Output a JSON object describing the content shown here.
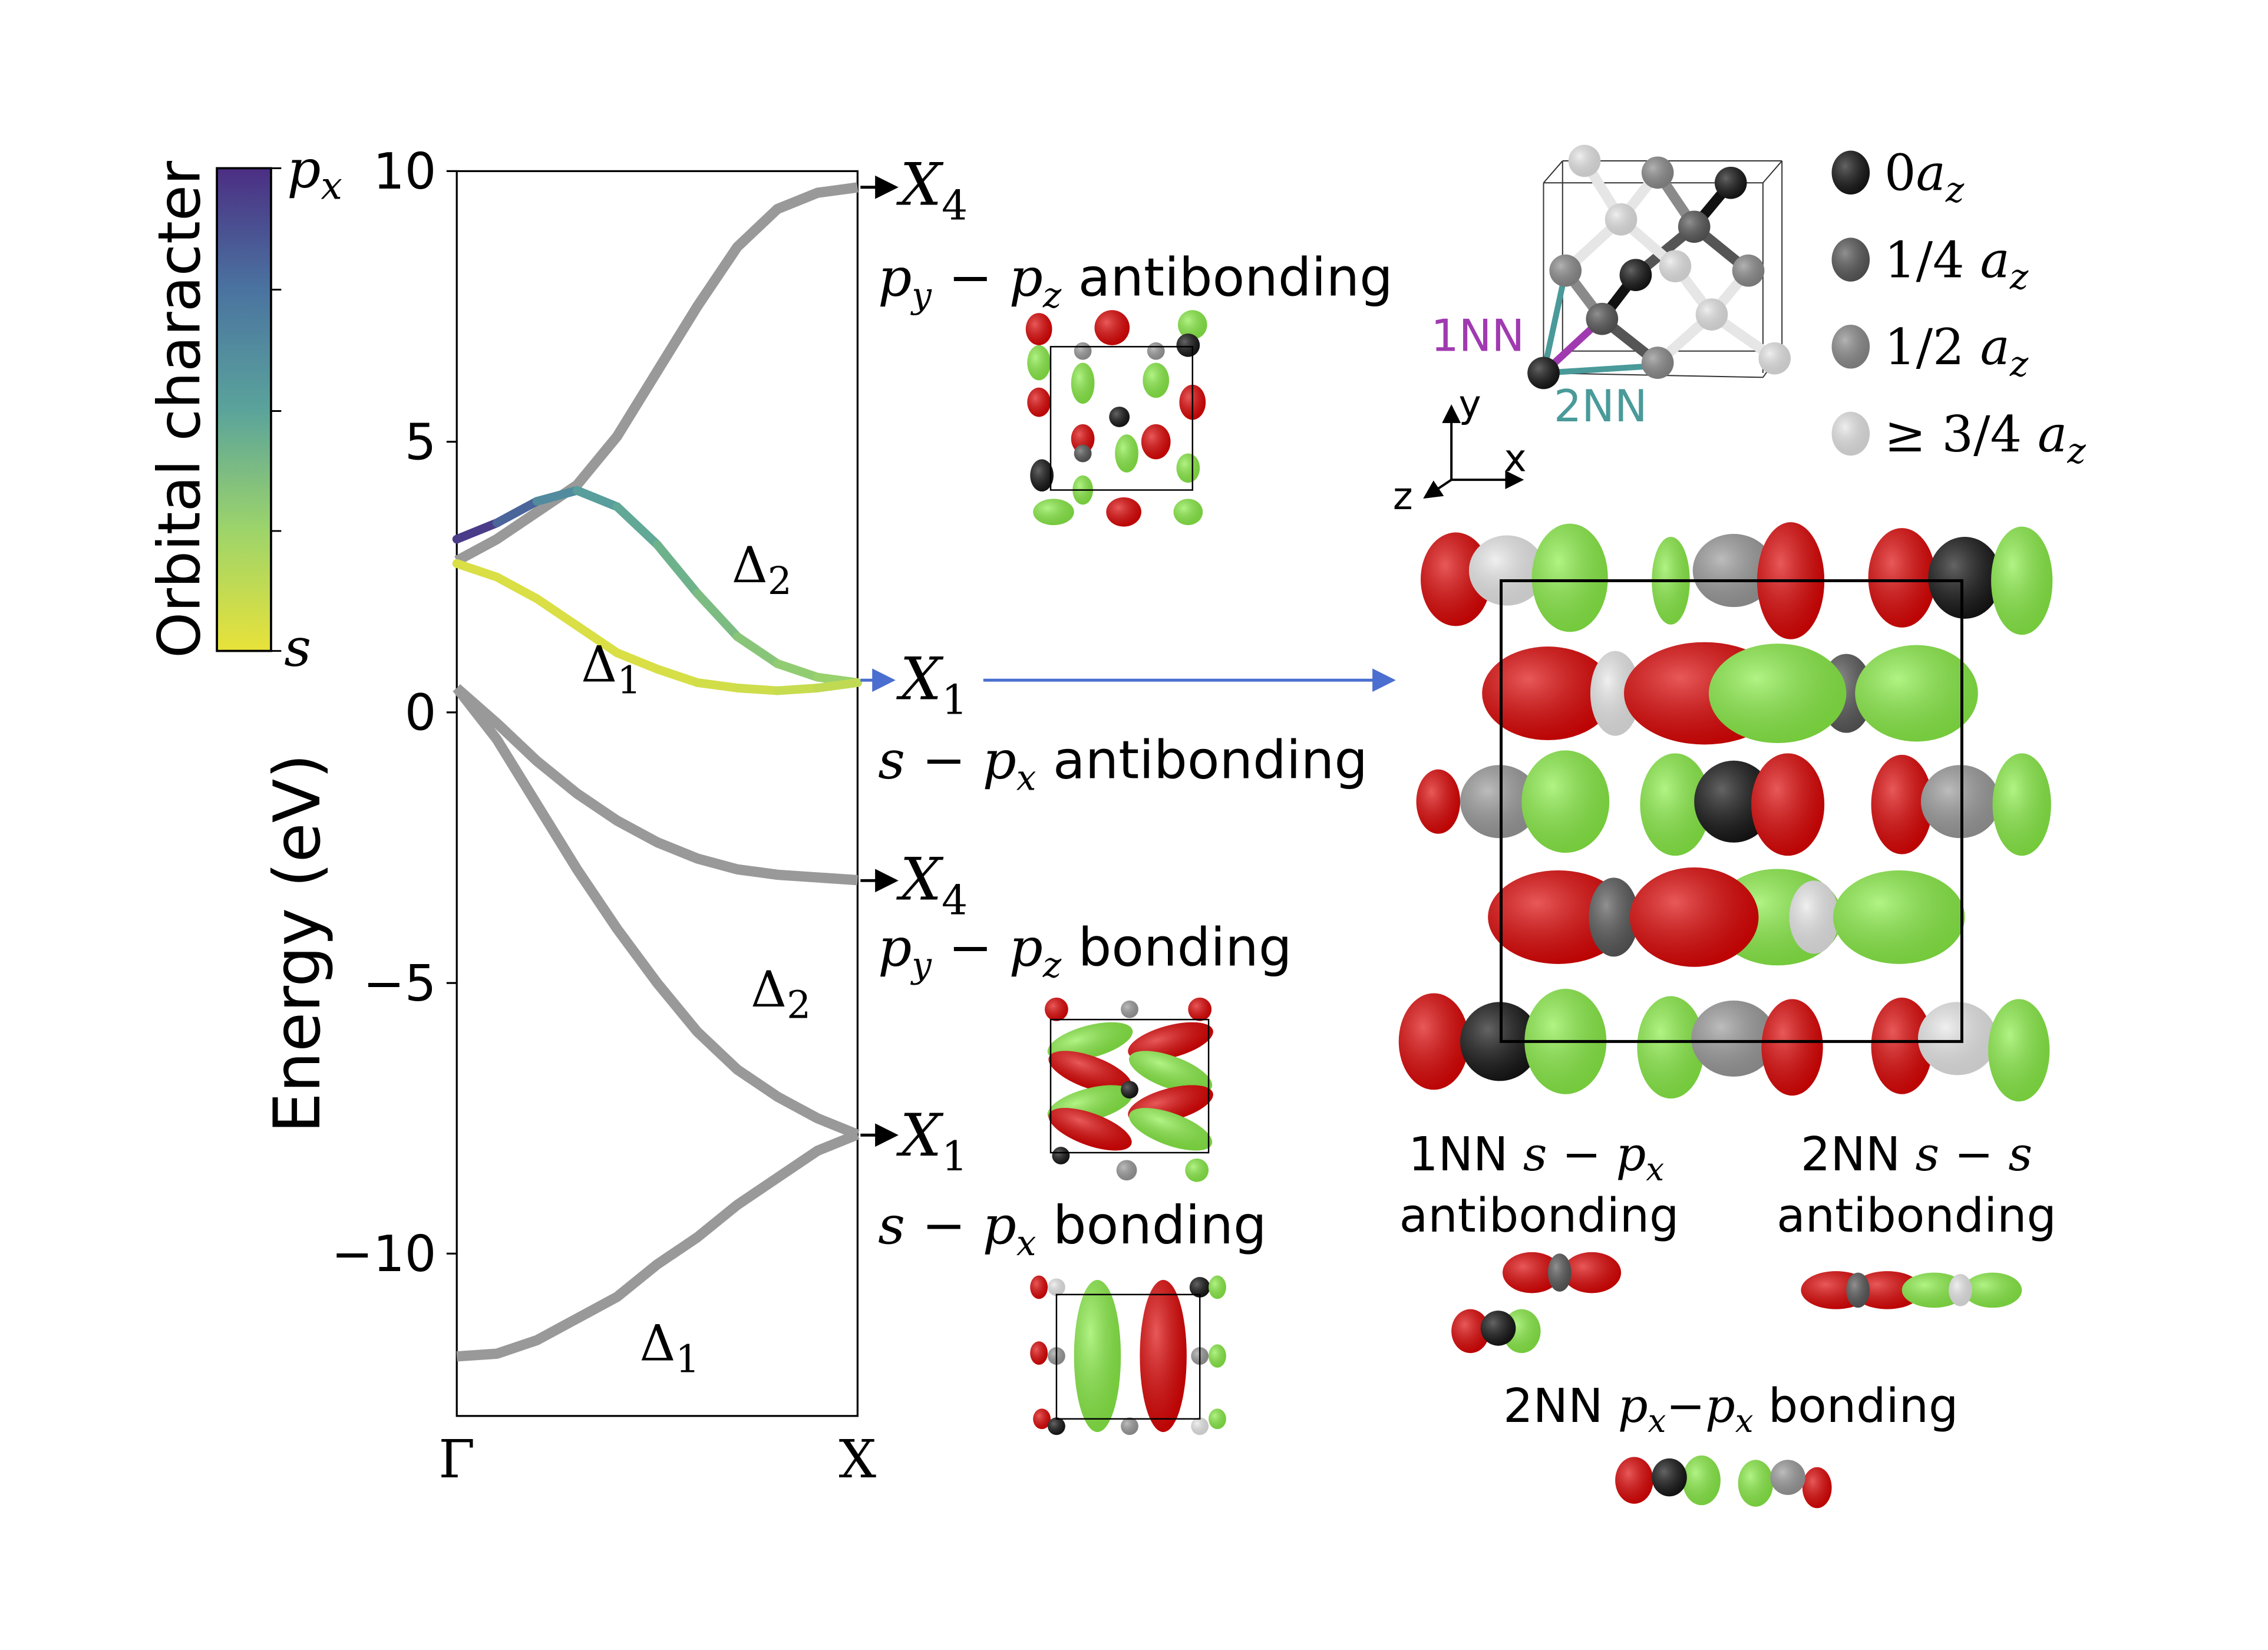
{
  "colorbar": {
    "label": "Orbital character",
    "top_label": {
      "base": "p",
      "sub": "x"
    },
    "bottom_label": "s",
    "colors": [
      "#e8e23a",
      "#9dd46a",
      "#5aa39b",
      "#4a73a0",
      "#4b2e83"
    ]
  },
  "chart_data": {
    "type": "line",
    "ylabel": "Energy (eV)",
    "xticks": [
      "Γ",
      "X"
    ],
    "yticks": [
      "10",
      "5",
      "0",
      "−5",
      "−10"
    ],
    "ytick_values": [
      10,
      5,
      0,
      -5,
      -10
    ],
    "ylim": [
      -13,
      10
    ],
    "xlim": [
      0,
      1
    ],
    "grid": false,
    "k": [
      0,
      0.1,
      0.2,
      0.3,
      0.4,
      0.5,
      0.6,
      0.7,
      0.8,
      0.9,
      1.0
    ],
    "series": [
      {
        "id": "upper-gray",
        "color": "#999999",
        "energy": [
          2.8,
          3.2,
          3.7,
          4.2,
          5.1,
          6.3,
          7.5,
          8.6,
          9.3,
          9.6,
          9.7
        ]
      },
      {
        "id": "delta2-upper",
        "energy": [
          3.2,
          3.5,
          3.9,
          4.1,
          3.8,
          3.1,
          2.2,
          1.4,
          0.9,
          0.65,
          0.55
        ],
        "character": [
          0.0,
          0.1,
          0.3,
          0.45,
          0.5,
          0.55,
          0.6,
          0.65,
          0.7,
          0.72,
          0.75
        ]
      },
      {
        "id": "delta1-upper",
        "energy": [
          2.75,
          2.5,
          2.1,
          1.6,
          1.1,
          0.8,
          0.55,
          0.45,
          0.4,
          0.45,
          0.55
        ],
        "character": [
          0.95,
          0.95,
          0.95,
          0.95,
          0.95,
          0.95,
          0.93,
          0.92,
          0.9,
          0.88,
          0.85
        ]
      },
      {
        "id": "lower-gray-1",
        "color": "#999999",
        "energy": [
          0.45,
          -0.2,
          -0.9,
          -1.5,
          -2.0,
          -2.4,
          -2.7,
          -2.9,
          -3.0,
          -3.05,
          -3.1
        ]
      },
      {
        "id": "delta2-lower",
        "color": "#999999",
        "energy": [
          0.45,
          -0.5,
          -1.7,
          -2.9,
          -4.0,
          -5.0,
          -5.9,
          -6.6,
          -7.1,
          -7.5,
          -7.8
        ]
      },
      {
        "id": "delta1-lower",
        "color": "#999999",
        "energy": [
          -11.9,
          -11.85,
          -11.6,
          -11.2,
          -10.8,
          -10.2,
          -9.7,
          -9.1,
          -8.6,
          -8.1,
          -7.8
        ]
      }
    ],
    "annotations": [
      {
        "text": "Δ",
        "sub": "2"
      },
      {
        "text": "Δ",
        "sub": "1"
      },
      {
        "text": "Δ",
        "sub": "2"
      },
      {
        "text": "Δ",
        "sub": "1"
      }
    ]
  },
  "states": [
    {
      "point": "X",
      "sub": "4",
      "desc": {
        "a": "p",
        "a_sub": "y",
        "op": " − ",
        "b": "p",
        "b_sub": "z",
        "word": " antibonding"
      }
    },
    {
      "point": "X",
      "sub": "1",
      "desc": {
        "a": "s",
        "op": " − ",
        "b": "p",
        "b_sub": "x",
        "word": " antibonding"
      }
    },
    {
      "point": "X",
      "sub": "4",
      "desc": {
        "a": "p",
        "a_sub": "y",
        "op": " − ",
        "b": "p",
        "b_sub": "z",
        "word": " bonding"
      }
    },
    {
      "point": "X",
      "sub": "1",
      "desc": {
        "a": "s",
        "op": " − ",
        "b": "p",
        "b_sub": "x",
        "word": " bonding"
      }
    }
  ],
  "highlight_arrow_color": "#4a6fd0",
  "structure": {
    "nn1_label": "1NN",
    "nn1_color": "#a03ab0",
    "nn2_label": "2NN",
    "nn2_color": "#4a9a9a",
    "axes": {
      "x": "x",
      "y": "y",
      "z": "z"
    },
    "legend": [
      {
        "pre": "0",
        "sym": "a",
        "sub": "z",
        "color": "#111111"
      },
      {
        "pre": "1/4 ",
        "sym": "a",
        "sub": "z",
        "color": "#555555"
      },
      {
        "pre": "1/2 ",
        "sym": "a",
        "sub": "z",
        "color": "#8a8a8a"
      },
      {
        "pre": "≥ 3/4 ",
        "sym": "a",
        "sub": "z",
        "color": "#e6e6e6"
      }
    ]
  },
  "orbital_colors": {
    "positive": "#dd0000",
    "negative": "#88ee44"
  },
  "bond_labels": [
    {
      "line1_pre": "1NN ",
      "a": "s",
      "op": " − ",
      "b": "p",
      "b_sub": "x",
      "line2": "antibonding"
    },
    {
      "line1_pre": "2NN ",
      "a": "s",
      "op": " − ",
      "b": "s",
      "line2": "antibonding"
    },
    {
      "line1_pre": "2NN ",
      "a": "p",
      "a_sub": "x",
      "op": "−",
      "b": "p",
      "b_sub": "x",
      "line2": " bonding"
    }
  ]
}
